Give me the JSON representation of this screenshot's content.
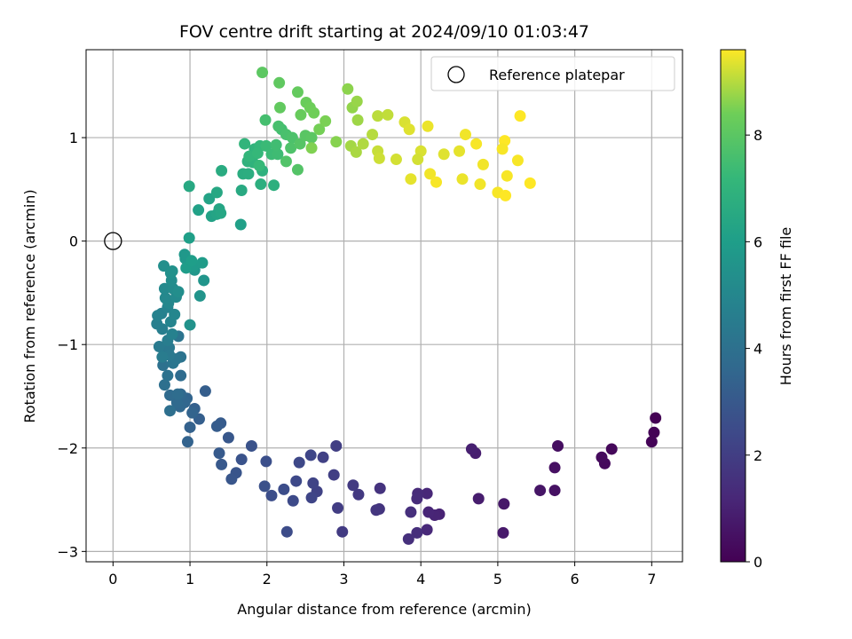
{
  "chart_data": {
    "type": "scatter",
    "title": "FOV centre drift starting at 2024/09/10 01:03:47",
    "xlabel": "Angular distance from reference (arcmin)",
    "ylabel": "Rotation from reference (arcmin)",
    "xlim": [
      -0.35,
      7.4
    ],
    "ylim": [
      -3.1,
      1.85
    ],
    "xticks": [
      0,
      1,
      2,
      3,
      4,
      5,
      6,
      7
    ],
    "yticks": [
      -3,
      -2,
      -1,
      0,
      1
    ],
    "grid": true,
    "legend": {
      "placement": "top-right",
      "entries": [
        "Reference platepar"
      ]
    },
    "reference_point": {
      "x": 0,
      "y": 0
    },
    "colorbar": {
      "label": "Hours from first FF file",
      "colormap": "viridis",
      "range": [
        0,
        9.6
      ],
      "ticks": [
        0,
        2,
        4,
        6,
        8
      ]
    },
    "series": [
      {
        "points": [
          [
            7.05,
            -1.71,
            0.0
          ],
          [
            7.03,
            -1.85,
            0.05
          ],
          [
            7.0,
            -1.94,
            0.1
          ],
          [
            6.48,
            -2.01,
            0.2
          ],
          [
            6.39,
            -2.15,
            0.25
          ],
          [
            6.35,
            -2.09,
            0.3
          ],
          [
            5.78,
            -1.98,
            0.4
          ],
          [
            5.74,
            -2.19,
            0.45
          ],
          [
            5.74,
            -2.41,
            0.5
          ],
          [
            5.55,
            -2.41,
            0.6
          ],
          [
            5.08,
            -2.54,
            0.7
          ],
          [
            5.07,
            -2.82,
            0.75
          ],
          [
            4.75,
            -2.49,
            0.85
          ],
          [
            4.71,
            -2.05,
            0.9
          ],
          [
            4.66,
            -2.01,
            0.95
          ],
          [
            4.24,
            -2.64,
            1.05
          ],
          [
            4.18,
            -2.65,
            1.1
          ],
          [
            4.1,
            -2.62,
            1.15
          ],
          [
            4.08,
            -2.44,
            1.2
          ],
          [
            4.08,
            -2.79,
            1.25
          ],
          [
            3.96,
            -2.44,
            1.3
          ],
          [
            3.95,
            -2.49,
            1.35
          ],
          [
            3.95,
            -2.82,
            1.4
          ],
          [
            3.87,
            -2.62,
            1.45
          ],
          [
            3.84,
            -2.88,
            1.5
          ],
          [
            3.47,
            -2.39,
            1.6
          ],
          [
            3.46,
            -2.59,
            1.65
          ],
          [
            3.42,
            -2.6,
            1.7
          ],
          [
            3.19,
            -2.45,
            1.8
          ],
          [
            3.12,
            -2.36,
            1.85
          ],
          [
            2.98,
            -2.81,
            1.9
          ],
          [
            2.92,
            -2.58,
            1.95
          ],
          [
            2.9,
            -1.98,
            2.0
          ],
          [
            2.87,
            -2.26,
            2.05
          ],
          [
            2.73,
            -2.09,
            2.1
          ],
          [
            2.65,
            -2.42,
            2.15
          ],
          [
            2.6,
            -2.34,
            2.2
          ],
          [
            2.58,
            -2.48,
            2.25
          ],
          [
            2.57,
            -2.07,
            2.3
          ],
          [
            2.42,
            -2.14,
            2.35
          ],
          [
            2.38,
            -2.32,
            2.4
          ],
          [
            2.34,
            -2.51,
            2.45
          ],
          [
            2.26,
            -2.81,
            2.5
          ],
          [
            2.22,
            -2.4,
            2.55
          ],
          [
            2.06,
            -2.46,
            2.6
          ],
          [
            1.99,
            -2.13,
            2.65
          ],
          [
            1.97,
            -2.37,
            2.7
          ],
          [
            1.8,
            -1.98,
            2.75
          ],
          [
            1.67,
            -2.11,
            2.8
          ],
          [
            1.6,
            -2.24,
            2.85
          ],
          [
            1.54,
            -2.3,
            2.9
          ],
          [
            1.5,
            -1.9,
            2.95
          ],
          [
            1.41,
            -2.16,
            3.0
          ],
          [
            1.38,
            -2.05,
            3.05
          ],
          [
            1.4,
            -1.76,
            3.1
          ],
          [
            1.35,
            -1.79,
            3.15
          ],
          [
            1.2,
            -1.45,
            3.2
          ],
          [
            1.12,
            -1.72,
            3.25
          ],
          [
            1.06,
            -1.62,
            3.3
          ],
          [
            1.0,
            -1.8,
            3.35
          ],
          [
            0.97,
            -1.94,
            3.4
          ],
          [
            1.03,
            -1.66,
            3.45
          ],
          [
            0.96,
            -1.52,
            3.5
          ],
          [
            0.93,
            -1.56,
            3.55
          ],
          [
            0.87,
            -1.6,
            3.6
          ],
          [
            0.88,
            -1.48,
            3.65
          ],
          [
            0.83,
            -1.56,
            3.7
          ],
          [
            0.74,
            -1.49,
            3.75
          ],
          [
            0.88,
            -1.3,
            3.8
          ],
          [
            0.84,
            -1.48,
            3.85
          ],
          [
            0.74,
            -1.64,
            3.9
          ],
          [
            0.67,
            -1.39,
            3.95
          ],
          [
            0.65,
            -1.2,
            4.0
          ],
          [
            0.71,
            -1.3,
            4.05
          ],
          [
            0.88,
            -1.12,
            4.1
          ],
          [
            0.85,
            -0.92,
            4.15
          ],
          [
            0.78,
            -1.18,
            4.2
          ],
          [
            0.82,
            -1.14,
            4.25
          ],
          [
            0.65,
            -1.03,
            4.3
          ],
          [
            0.73,
            -1.03,
            4.35
          ],
          [
            0.73,
            -1.1,
            4.4
          ],
          [
            0.6,
            -1.02,
            4.45
          ],
          [
            0.64,
            -1.12,
            4.5
          ],
          [
            0.71,
            -0.96,
            4.55
          ],
          [
            0.64,
            -0.85,
            4.6
          ],
          [
            0.57,
            -0.8,
            4.65
          ],
          [
            0.63,
            -0.7,
            4.7
          ],
          [
            0.77,
            -0.9,
            4.75
          ],
          [
            0.58,
            -0.72,
            4.8
          ],
          [
            0.71,
            -0.64,
            4.85
          ],
          [
            0.75,
            -0.78,
            4.9
          ],
          [
            0.8,
            -0.71,
            4.95
          ],
          [
            0.72,
            -0.6,
            5.0
          ],
          [
            0.68,
            -0.55,
            5.05
          ],
          [
            0.67,
            -0.46,
            5.1
          ],
          [
            0.82,
            -0.54,
            5.15
          ],
          [
            0.78,
            -0.46,
            5.2
          ],
          [
            0.76,
            -0.38,
            5.25
          ],
          [
            0.85,
            -0.49,
            5.3
          ],
          [
            0.66,
            -0.24,
            5.35
          ],
          [
            0.75,
            -0.31,
            5.4
          ],
          [
            0.77,
            -0.29,
            5.45
          ],
          [
            1.0,
            -0.81,
            5.5
          ],
          [
            1.13,
            -0.53,
            5.55
          ],
          [
            1.18,
            -0.38,
            5.6
          ],
          [
            1.06,
            -0.28,
            5.65
          ],
          [
            0.94,
            -0.17,
            5.7
          ],
          [
            0.93,
            -0.13,
            5.75
          ],
          [
            1.05,
            -0.25,
            5.8
          ],
          [
            1.04,
            -0.24,
            5.85
          ],
          [
            1.16,
            -0.21,
            5.9
          ],
          [
            0.95,
            -0.26,
            5.95
          ],
          [
            1.02,
            -0.19,
            6.0
          ],
          [
            0.99,
            0.03,
            6.05
          ],
          [
            1.66,
            0.16,
            6.1
          ],
          [
            1.11,
            0.3,
            6.15
          ],
          [
            1.28,
            0.24,
            6.2
          ],
          [
            1.25,
            0.41,
            6.25
          ],
          [
            1.35,
            0.26,
            6.3
          ],
          [
            1.38,
            0.31,
            6.35
          ],
          [
            1.4,
            0.27,
            6.4
          ],
          [
            1.35,
            0.47,
            6.45
          ],
          [
            0.99,
            0.53,
            6.5
          ],
          [
            1.67,
            0.49,
            6.55
          ],
          [
            1.41,
            0.68,
            6.6
          ],
          [
            1.69,
            0.65,
            6.65
          ],
          [
            1.76,
            0.65,
            6.7
          ],
          [
            1.92,
            0.55,
            6.75
          ],
          [
            2.09,
            0.54,
            6.8
          ],
          [
            1.94,
            0.68,
            6.85
          ],
          [
            1.75,
            0.77,
            6.9
          ],
          [
            1.82,
            0.76,
            6.95
          ],
          [
            1.84,
            0.89,
            7.0
          ],
          [
            1.71,
            0.94,
            7.05
          ],
          [
            1.77,
            0.82,
            7.1
          ],
          [
            1.91,
            0.92,
            7.15
          ],
          [
            1.88,
            0.85,
            7.2
          ],
          [
            1.9,
            0.73,
            7.25
          ],
          [
            1.99,
            0.92,
            7.3
          ],
          [
            2.06,
            0.84,
            7.35
          ],
          [
            2.14,
            0.84,
            7.4
          ],
          [
            2.12,
            0.93,
            7.45
          ],
          [
            2.19,
            1.08,
            7.5
          ],
          [
            1.98,
            1.17,
            7.55
          ],
          [
            2.15,
            1.11,
            7.6
          ],
          [
            2.25,
            1.03,
            7.65
          ],
          [
            2.33,
            1.0,
            7.7
          ],
          [
            2.31,
            0.9,
            7.75
          ],
          [
            2.25,
            0.77,
            7.8
          ],
          [
            2.4,
            0.69,
            7.85
          ],
          [
            2.43,
            0.94,
            7.9
          ],
          [
            2.5,
            1.02,
            7.95
          ],
          [
            2.58,
            1.0,
            8.0
          ],
          [
            1.94,
            1.63,
            8.05
          ],
          [
            2.16,
            1.53,
            8.1
          ],
          [
            2.17,
            1.29,
            8.15
          ],
          [
            2.4,
            1.44,
            8.2
          ],
          [
            2.44,
            1.22,
            8.25
          ],
          [
            2.51,
            1.34,
            8.3
          ],
          [
            2.56,
            1.29,
            8.35
          ],
          [
            2.61,
            1.24,
            8.4
          ],
          [
            2.68,
            1.08,
            8.45
          ],
          [
            2.76,
            1.16,
            8.5
          ],
          [
            2.58,
            0.9,
            8.55
          ],
          [
            2.9,
            0.96,
            8.6
          ],
          [
            3.05,
            1.47,
            8.65
          ],
          [
            3.11,
            1.29,
            8.7
          ],
          [
            3.17,
            1.35,
            8.75
          ],
          [
            3.18,
            1.17,
            8.8
          ],
          [
            3.09,
            0.92,
            8.85
          ],
          [
            3.16,
            0.86,
            8.9
          ],
          [
            3.25,
            0.94,
            8.95
          ],
          [
            3.37,
            1.03,
            9.0
          ],
          [
            3.44,
            1.21,
            9.05
          ],
          [
            3.57,
            1.22,
            9.1
          ],
          [
            3.44,
            0.87,
            9.15
          ],
          [
            3.46,
            0.8,
            9.2
          ],
          [
            3.68,
            0.79,
            9.25
          ],
          [
            3.79,
            1.15,
            9.3
          ],
          [
            3.85,
            1.08,
            9.35
          ],
          [
            3.87,
            0.6,
            9.4
          ],
          [
            4.09,
            1.11,
            9.45
          ],
          [
            4.12,
            0.65,
            9.5
          ],
          [
            4.2,
            0.57,
            9.55
          ],
          [
            4.54,
            0.6,
            9.45
          ],
          [
            4.58,
            1.03,
            9.5
          ],
          [
            4.72,
            0.94,
            9.55
          ],
          [
            4.77,
            0.55,
            9.5
          ],
          [
            5.0,
            0.47,
            9.55
          ],
          [
            5.1,
            0.44,
            9.6
          ],
          [
            5.12,
            0.63,
            9.55
          ],
          [
            5.29,
            1.21,
            9.6
          ],
          [
            5.26,
            0.78,
            9.55
          ],
          [
            5.42,
            0.56,
            9.6
          ],
          [
            5.09,
            0.97,
            9.6
          ],
          [
            5.06,
            0.89,
            9.55
          ],
          [
            4.81,
            0.74,
            9.5
          ],
          [
            4.5,
            0.87,
            9.4
          ],
          [
            4.3,
            0.84,
            9.35
          ],
          [
            4.0,
            0.87,
            9.3
          ],
          [
            3.96,
            0.79,
            9.25
          ]
        ]
      }
    ]
  }
}
